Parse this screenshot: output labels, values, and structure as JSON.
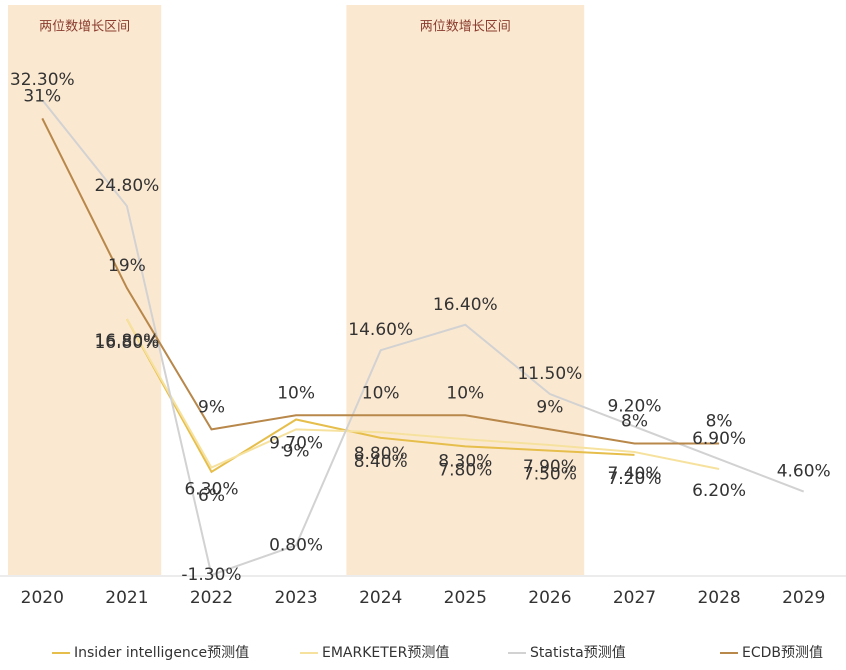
{
  "chart_data": {
    "type": "line",
    "categories": [
      "2020",
      "2021",
      "2022",
      "2023",
      "2024",
      "2025",
      "2026",
      "2027",
      "2028",
      "2029"
    ],
    "highlight_bands": [
      {
        "label": "两位数增长区间",
        "from": "2020",
        "to": "2021",
        "color": "#fbe8d0"
      },
      {
        "label": "两位数增长区间",
        "from": "2024",
        "to": "2026",
        "color": "#fbe8d0"
      }
    ],
    "series": [
      {
        "name": "Insider intelligence预测值",
        "color": "#e6be4c",
        "values": [
          null,
          16.8,
          6,
          9.7,
          8.4,
          7.8,
          7.5,
          7.2,
          null,
          null
        ],
        "value_labels": [
          null,
          "16.80%",
          "6%",
          "9.70%",
          "8.40%",
          "7.80%",
          "7.50%",
          "7.20%",
          null,
          null
        ]
      },
      {
        "name": "EMARKETER预测值",
        "color": "#f6e29e",
        "values": [
          null,
          16.8,
          6.3,
          9,
          8.8,
          8.3,
          7.9,
          7.4,
          6.2,
          null
        ],
        "value_labels": [
          null,
          "16.80%",
          "6.30%",
          "9%",
          "8.80%",
          "8.30%",
          "7.90%",
          "7.40%",
          "6.20%",
          null
        ]
      },
      {
        "name": "Statista预测值",
        "color": "#d2d2d2",
        "values": [
          32.3,
          24.8,
          -1.3,
          0.8,
          14.6,
          16.4,
          11.5,
          9.2,
          6.9,
          4.6
        ],
        "value_labels": [
          "32.30%",
          "24.80%",
          "-1.30%",
          "0.80%",
          "14.60%",
          "16.40%",
          "11.50%",
          "9.20%",
          "6.90%",
          "4.60%"
        ]
      },
      {
        "name": "ECDB预测值",
        "color": "#b8874a",
        "values": [
          31,
          19,
          9,
          10,
          10,
          10,
          9,
          8,
          8,
          null
        ],
        "value_labels": [
          "31%",
          "19%",
          "9%",
          "10%",
          "10%",
          "10%",
          "9%",
          "8%",
          "8%",
          null
        ]
      }
    ]
  }
}
